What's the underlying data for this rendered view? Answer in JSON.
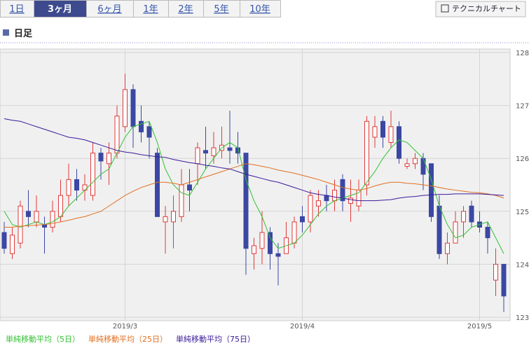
{
  "tabs": [
    "1日",
    "3ヶ月",
    "6ヶ月",
    "1年",
    "2年",
    "5年",
    "10年"
  ],
  "selected_tab": 1,
  "button": "テクニカルチャート",
  "section_title": "日足",
  "chart_data": {
    "type": "candlestick",
    "up_color": "#e03a3a",
    "down_color": "#3b47a3",
    "categories": [
      null,
      null,
      null,
      null,
      null,
      null,
      null,
      null,
      null,
      null,
      null,
      null,
      null,
      null,
      null,
      "2019/3",
      null,
      null,
      null,
      null,
      null,
      null,
      null,
      null,
      null,
      null,
      null,
      null,
      null,
      null,
      null,
      null,
      null,
      null,
      null,
      null,
      null,
      "2019/4",
      null,
      null,
      null,
      null,
      null,
      null,
      null,
      null,
      null,
      null,
      null,
      null,
      null,
      null,
      null,
      null,
      null,
      null,
      null,
      null,
      null,
      "2019/5",
      null,
      null,
      null
    ],
    "open": [
      124.6,
      124.2,
      124.4,
      125.0,
      124.8,
      124.75,
      124.7,
      124.9,
      125.3,
      125.6,
      125.4,
      125.3,
      126.1,
      125.9,
      126.1,
      126.6,
      127.3,
      126.7,
      126.6,
      126.1,
      124.8,
      124.8,
      124.9,
      125.5,
      125.9,
      126.15,
      126.05,
      126.15,
      126.2,
      126.2,
      126.1,
      124.2,
      124.3,
      124.6,
      124.2,
      124.2,
      124.4,
      124.9,
      124.8,
      125.1,
      125.3,
      125.2,
      125.6,
      125.15,
      125.1,
      125.5,
      126.4,
      126.7,
      126.3,
      126.6,
      125.85,
      125.9,
      126.0,
      125.9,
      125.1,
      124.2,
      124.4,
      124.8,
      125.1,
      124.8,
      124.7,
      123.7,
      124.0
    ],
    "high": [
      124.8,
      124.7,
      125.2,
      125.4,
      125.3,
      124.9,
      125.2,
      125.6,
      125.9,
      125.8,
      125.7,
      126.3,
      126.2,
      126.3,
      127.0,
      127.6,
      127.4,
      127.0,
      126.7,
      126.2,
      125.1,
      125.3,
      125.8,
      125.8,
      126.3,
      126.6,
      126.5,
      126.6,
      126.9,
      126.5,
      126.1,
      124.5,
      125.0,
      124.7,
      124.4,
      124.8,
      124.9,
      125.1,
      125.4,
      125.4,
      125.5,
      125.6,
      125.7,
      125.6,
      125.6,
      126.8,
      126.8,
      126.8,
      126.9,
      126.7,
      126.0,
      126.1,
      126.1,
      125.9,
      125.3,
      124.6,
      125.0,
      125.1,
      125.2,
      125.0,
      124.8,
      124.3,
      124.0
    ],
    "low": [
      124.2,
      124.1,
      124.3,
      124.7,
      124.7,
      124.2,
      124.6,
      124.8,
      125.1,
      125.2,
      125.2,
      125.2,
      125.6,
      125.5,
      126.0,
      126.5,
      126.2,
      126.3,
      126.0,
      124.9,
      124.2,
      124.3,
      124.8,
      125.0,
      125.5,
      125.8,
      125.9,
      126.0,
      125.9,
      125.9,
      123.8,
      123.9,
      124.0,
      123.9,
      123.6,
      124.2,
      124.3,
      124.6,
      124.6,
      124.9,
      125.0,
      125.0,
      125.0,
      124.8,
      125.0,
      125.3,
      126.2,
      126.2,
      126.2,
      125.9,
      125.8,
      125.8,
      125.4,
      124.8,
      124.1,
      124.0,
      124.4,
      124.5,
      124.7,
      124.6,
      124.2,
      123.4,
      123.1
    ],
    "close": [
      124.3,
      124.55,
      125.1,
      124.9,
      125.0,
      124.7,
      125.0,
      125.3,
      125.6,
      125.4,
      125.5,
      126.1,
      125.95,
      126.1,
      126.8,
      127.3,
      126.6,
      126.5,
      126.4,
      124.9,
      124.9,
      125.0,
      125.5,
      125.4,
      126.2,
      126.1,
      126.2,
      126.25,
      126.15,
      126.1,
      124.3,
      124.35,
      124.6,
      124.2,
      124.15,
      124.5,
      124.8,
      124.8,
      125.3,
      125.2,
      125.2,
      125.4,
      125.2,
      125.25,
      125.4,
      126.7,
      126.6,
      126.4,
      126.6,
      126.0,
      125.9,
      126.0,
      125.7,
      124.9,
      124.2,
      124.4,
      124.8,
      125.0,
      124.8,
      124.7,
      124.5,
      124.0,
      123.4
    ],
    "lines": [
      {
        "name": "単純移動平均（5日）",
        "color": "#33c233",
        "values": [
          125.0,
          124.75,
          124.7,
          124.75,
          124.8,
          124.75,
          124.8,
          124.9,
          125.1,
          125.25,
          125.4,
          125.55,
          125.7,
          125.8,
          126.1,
          126.4,
          126.6,
          126.65,
          126.7,
          126.3,
          125.8,
          125.5,
          125.35,
          125.3,
          125.55,
          125.8,
          126.0,
          126.2,
          126.3,
          126.2,
          125.6,
          125.2,
          124.9,
          124.5,
          124.3,
          124.35,
          124.4,
          124.55,
          124.75,
          124.95,
          125.1,
          125.2,
          125.25,
          125.3,
          125.35,
          125.55,
          125.75,
          126.0,
          126.2,
          126.35,
          126.3,
          126.15,
          126.0,
          125.6,
          125.1,
          124.75,
          124.5,
          124.55,
          124.7,
          124.75,
          124.8,
          124.5,
          124.2
        ]
      },
      {
        "name": "単純移動平均（25日）",
        "color": "#e07020",
        "values": [
          124.7,
          124.7,
          124.72,
          124.73,
          124.74,
          124.75,
          124.77,
          124.8,
          124.83,
          124.87,
          124.9,
          124.95,
          125.0,
          125.1,
          125.2,
          125.3,
          125.38,
          125.45,
          125.5,
          125.55,
          125.55,
          125.53,
          125.5,
          125.55,
          125.6,
          125.65,
          125.7,
          125.75,
          125.8,
          125.85,
          125.9,
          125.88,
          125.85,
          125.82,
          125.78,
          125.75,
          125.72,
          125.68,
          125.64,
          125.6,
          125.55,
          125.5,
          125.45,
          125.42,
          125.4,
          125.43,
          125.48,
          125.52,
          125.55,
          125.55,
          125.53,
          125.52,
          125.5,
          125.48,
          125.45,
          125.42,
          125.4,
          125.38,
          125.36,
          125.35,
          125.33,
          125.3,
          125.25
        ]
      },
      {
        "name": "単純移動平均（75日）",
        "color": "#3a1a9a",
        "values": [
          126.75,
          126.72,
          126.7,
          126.65,
          126.6,
          126.55,
          126.5,
          126.45,
          126.4,
          126.38,
          126.35,
          126.3,
          126.25,
          126.2,
          126.15,
          126.12,
          126.1,
          126.07,
          126.05,
          126.03,
          126.02,
          125.98,
          125.95,
          125.92,
          125.9,
          125.87,
          125.85,
          125.82,
          125.8,
          125.75,
          125.7,
          125.66,
          125.62,
          125.58,
          125.55,
          125.5,
          125.45,
          125.4,
          125.35,
          125.32,
          125.3,
          125.27,
          125.25,
          125.22,
          125.2,
          125.2,
          125.2,
          125.21,
          125.22,
          125.25,
          125.27,
          125.28,
          125.3,
          125.31,
          125.32,
          125.32,
          125.33,
          125.33,
          125.33,
          125.33,
          125.32,
          125.31,
          125.3
        ]
      }
    ],
    "ylim": [
      123,
      128
    ],
    "yticks": [
      123,
      124,
      125,
      126,
      127,
      128
    ],
    "grid": true
  }
}
